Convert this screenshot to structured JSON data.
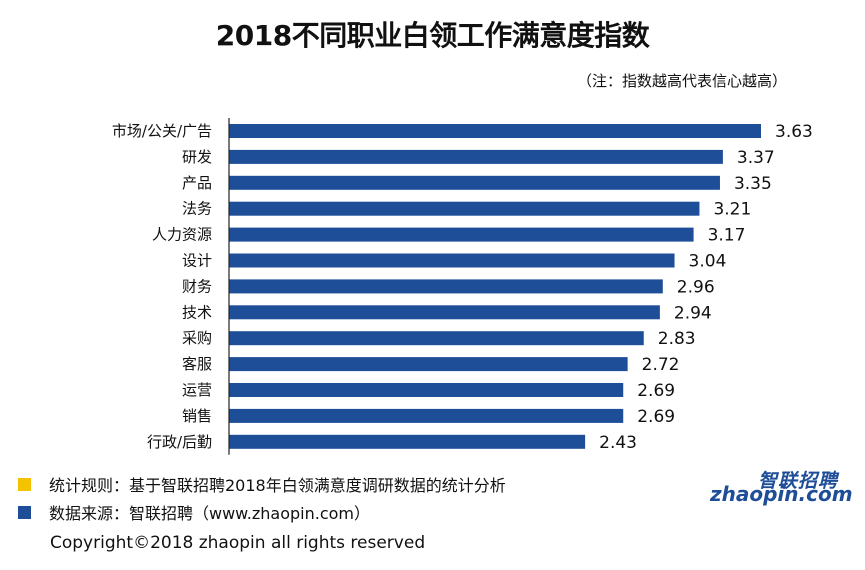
{
  "chart_data": {
    "type": "bar",
    "orientation": "horizontal",
    "title": "2018不同职业白领工作满意度指数",
    "subtitle": "（注：指数越高代表信心越高）",
    "categories": [
      "市场/公关/广告",
      "研发",
      "产品",
      "法务",
      "人力资源",
      "设计",
      "财务",
      "技术",
      "采购",
      "客服",
      "运营",
      "销售",
      "行政/后勤"
    ],
    "values": [
      3.63,
      3.37,
      3.35,
      3.21,
      3.17,
      3.04,
      2.96,
      2.94,
      2.83,
      2.72,
      2.69,
      2.69,
      2.43
    ],
    "value_labels": [
      "3.63",
      "3.37",
      "3.35",
      "3.21",
      "3.17",
      "3.04",
      "2.96",
      "2.94",
      "2.83",
      "2.72",
      "2.69",
      "2.69",
      "2.43"
    ],
    "xlim": [
      0,
      3.63
    ],
    "bar_color": "#1F4E99",
    "grid": false
  },
  "legend": [
    {
      "text": "统计规则：基于智联招聘2018年白领满意度调研数据的统计分析",
      "color": "#F5C200"
    },
    {
      "text": "数据来源：智联招聘（www.zhaopin.com）",
      "color": "#1F4E99"
    }
  ],
  "logo": {
    "cn": "智联招聘",
    "en": "zhaopin.com"
  },
  "copyright": "Copyright©2018 zhaopin all rights reserved"
}
